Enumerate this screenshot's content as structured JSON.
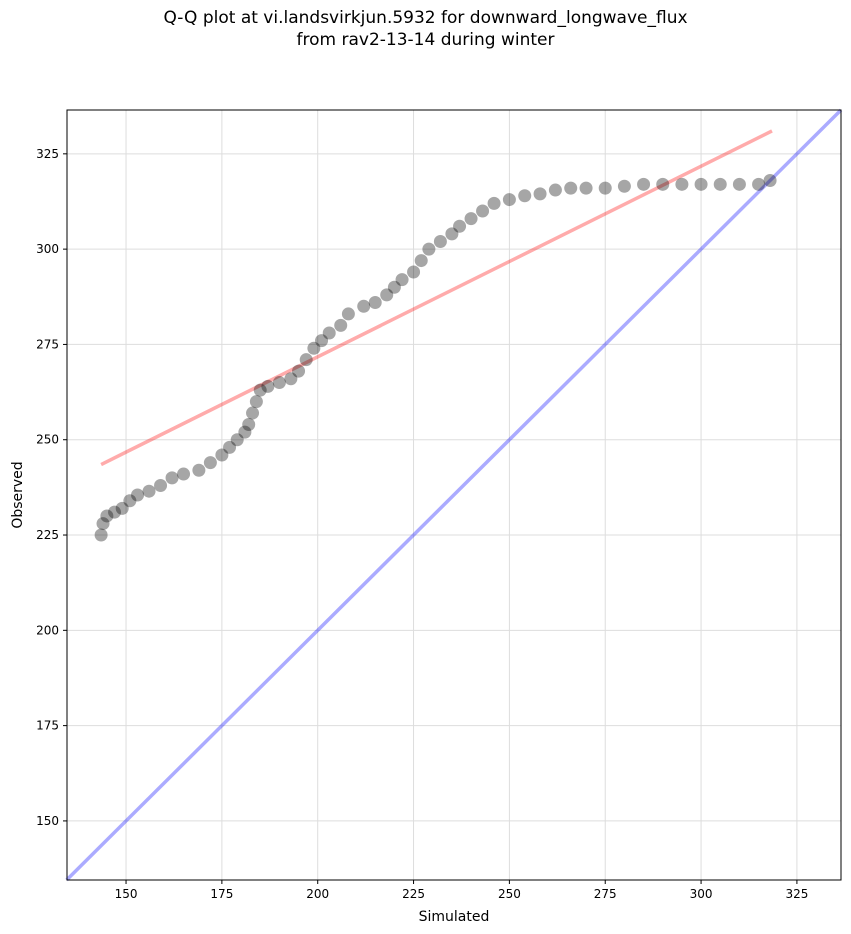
{
  "chart_data": {
    "type": "scatter",
    "title": "Q-Q plot at vi.landsvirkjun.5932 for downward_longwave_flux",
    "subtitle": "from rav2-13-14 during winter",
    "xlabel": "Simulated",
    "ylabel": "Observed",
    "xlim": [
      134.6,
      336.5
    ],
    "ylim": [
      134.5,
      336.5
    ],
    "xticks": [
      150,
      175,
      200,
      225,
      250,
      275,
      300,
      325
    ],
    "yticks": [
      150,
      175,
      200,
      225,
      250,
      275,
      300,
      325
    ],
    "grid": true,
    "colors": {
      "points": "#000000",
      "fit_line": "#ff0000",
      "identity_line": "#0000ff"
    },
    "fit_line": {
      "x": [
        143.5,
        318.5
      ],
      "y": [
        243.5,
        331
      ]
    },
    "identity_line": {
      "x": [
        134.5,
        336.5
      ],
      "y": [
        134.5,
        336.5
      ]
    },
    "points": {
      "x": [
        143.5,
        144,
        145,
        147,
        149,
        151,
        153,
        156,
        159,
        162,
        165,
        169,
        172,
        175,
        177,
        179,
        181,
        182,
        183,
        184,
        185,
        187,
        190,
        193,
        195,
        197,
        199,
        201,
        203,
        206,
        208,
        212,
        215,
        218,
        220,
        222,
        225,
        227,
        229,
        232,
        235,
        237,
        240,
        243,
        246,
        250,
        254,
        258,
        262,
        266,
        270,
        275,
        280,
        285,
        290,
        295,
        300,
        305,
        310,
        315,
        318
      ],
      "y": [
        225,
        228,
        230,
        231,
        232,
        234,
        235.5,
        236.5,
        238,
        240,
        241,
        242,
        244,
        246,
        248,
        250,
        252,
        254,
        257,
        260,
        263,
        264,
        265,
        266,
        268,
        271,
        274,
        276,
        278,
        280,
        283,
        285,
        286,
        288,
        290,
        292,
        294,
        297,
        300,
        302,
        304,
        306,
        308,
        310,
        312,
        313,
        314,
        314.5,
        315.5,
        316,
        316,
        316,
        316.5,
        317,
        317,
        317,
        317,
        317,
        317,
        317,
        318
      ]
    }
  }
}
